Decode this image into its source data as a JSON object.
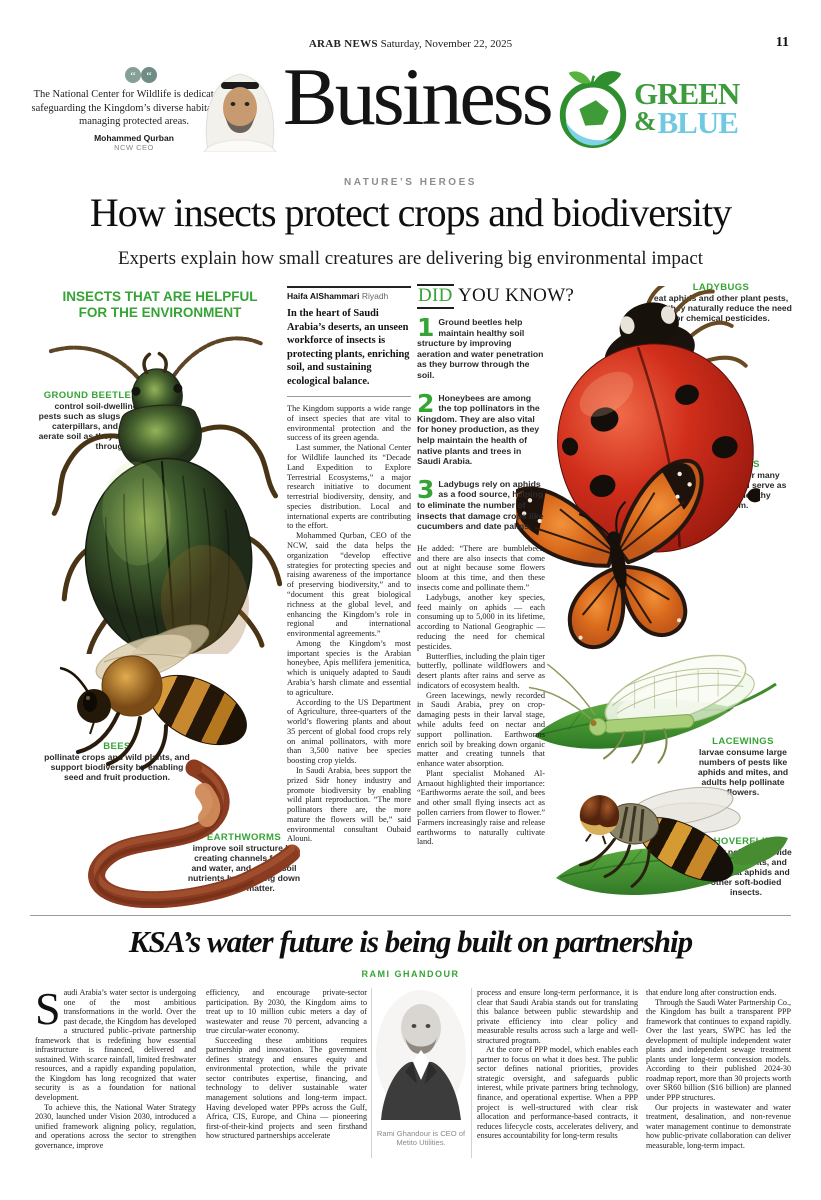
{
  "masthead": {
    "paper_name": "ARAB NEWS",
    "date": "Saturday, November 22, 2025",
    "page_number": "11",
    "section_title": "Business"
  },
  "section_logo": {
    "green": "GREEN",
    "amp": "&",
    "blue": "BLUE"
  },
  "pull_quote": {
    "text": "The National Center for Wildlife is dedicated to safeguarding the Kingdom’s diverse habitats and managing protected areas.",
    "author": "Mohammed Qurban",
    "role": "NCW CEO"
  },
  "lead_article": {
    "kicker": "NATURE’S HEROES",
    "headline": "How insects protect crops and biodiversity",
    "subhead": "Experts explain how small creatures are delivering big environmental impact",
    "byline_name": "Haifa AlShammari",
    "byline_location": "Riyadh",
    "lede": "In the heart of Saudi Arabia’s deserts, an unseen workforce of insects is protecting plants, enriching soil, and sustaining ecological balance.",
    "body_col1": [
      "The Kingdom supports a wide range of insect species that are vital to environmental protection and the success of its green agenda.",
      "Last summer, the National Center for Wildlife launched its “Decade Land Expedition to Explore Terrestrial Ecosystems,” a major research initiative to document terrestrial biodiversity, density, and species distribution. Local and international experts are contributing to the effort.",
      "Mohammed Qurban, CEO of the NCW, said the data helps the organization “develop effective strategies for protecting species and raising awareness of the importance of preserving biodiversity,” and to “document this great biological richness at the global level, and enhancing the Kingdom’s role in regional and international environmental agreements.”",
      "Among the Kingdom’s most important species is the Arabian honeybee, Apis mellifera jemenitica, which is uniquely adapted to Saudi Arabia’s harsh climate and essential to agriculture.",
      "According to the US Department of Agriculture, three-quarters of the world’s flowering plants and about 35 percent of global food crops rely on animal pollinators, with more than 3,500 native bee species boosting crop yields.",
      "In Saudi Arabia, bees support the prized Sidr honey industry and promote biodiversity by enabling wild plant reproduction. “The more pollinators there are, the more mature the flowers will be,” said environmental consultant Oubaid Alouni."
    ],
    "body_col2": [
      "He added: “There are bumblebees, and there are also insects that come out at night because some flowers bloom at this time, and then these insects come and pollinate them.”",
      "Ladybugs, another key species, feed mainly on aphids — each consuming up to 5,000 in its lifetime, according to National Geographic — reducing the need for chemical pesticides.",
      "Butterflies, including the plain tiger butterfly, pollinate wildflowers and desert plants after rains and serve as indicators of ecosystem health.",
      "Green lacewings, newly recorded in Saudi Arabia, prey on crop-damaging pests in their larval stage, while adults feed on nectar and support pollination. Earthworms enrich soil by breaking down organic matter and creating tunnels that enhance water absorption.",
      "Plant specialist Mohaned Al-Arnaout highlighted their importance: “Earthworms aerate the soil, and bees and other small flying insects act as pollen carriers from flower to flower.” Farmers increasingly raise and release earthworms to naturally cultivate land."
    ]
  },
  "infographic": {
    "title": "INSECTS THAT ARE HELPFUL FOR THE ENVIRONMENT",
    "labels": [
      {
        "name": "GROUND BEETLES",
        "text": "control soil-dwelling pests such as slugs and caterpillars, and help aerate soil as they move through it."
      },
      {
        "name": "BEES",
        "text": "pollinate crops and wild plants, and support biodiversity by enabling seed and fruit production."
      },
      {
        "name": "EARTHWORMS",
        "text": "improve soil structure by creating channels for air and water, and enrich soil nutrients by breaking down organic matter."
      },
      {
        "name": "LADYBUGS",
        "text": "eat aphids and other plant pests, and they naturally reduce the need for chemical pesticides."
      },
      {
        "name": "BUTTERFLIES",
        "text": "act as pollinators for many flowering plants, and serve as indicators of a healthy ecosystem."
      },
      {
        "name": "LACEWINGS",
        "text": "larvae consume large numbers of pests like aphids and mites, and adults help pollinate flowers."
      },
      {
        "name": "HOVERFLIES",
        "text": "adults pollinate a wide range of plants, and larvae eat aphids and other soft-bodied insects."
      }
    ]
  },
  "did_you_know": {
    "title_accent": "DID",
    "title_rest": " YOU KNOW?",
    "facts": [
      {
        "num": "1",
        "text": "Ground beetles help maintain healthy soil structure by improving aeration and water penetration as they burrow through the soil."
      },
      {
        "num": "2",
        "text": "Honeybees are among the top pollinators in the Kingdom. They are also vital for honey production, as they help maintain the health of native plants and trees in Saudi Arabia."
      },
      {
        "num": "3",
        "text": "Ladybugs rely on aphids as a food source, helping to eliminate the number of insects that damage crops like cucumbers and date palms."
      }
    ]
  },
  "water_article": {
    "headline": "KSA’s water future is being built on partnership",
    "byline": "RAMI GHANDOUR",
    "drop_cap": "S",
    "col1": [
      "audi Arabia’s water sector is undergoing one of the most ambitious transformations in the world. Over the past decade, the Kingdom has developed a structured public–private partnership framework that is redefining how essential infrastructure is financed, delivered and sustained. With scarce rainfall, limited freshwater resources, and a rapidly expanding population, the Kingdom has long recognized that water security is as a foundation for national development.",
      "To achieve this, the National Water Strategy 2030, launched under Vision 2030, introduced a unified framework aligning policy, regulation, and operations across the sector to strengthen governance, improve"
    ],
    "col2": [
      "efficiency, and encourage private-sector participation. By 2030, the Kingdom aims to treat up to 10 million cubic meters a day of wastewater and reuse 70 percent, advancing a true circular-water economy.",
      "Succeeding these ambitions requires partnership and innovation. The government defines strategy and ensures equity and environmental protection, while the private sector contributes expertise, financing, and technology to deliver sustainable water management solutions and long-term impact. Having developed water PPPs across the Gulf, Africa, CIS, Europe, and China — pioneering first-of-their-kind projects and seen firsthand how structured partnerships accelerate"
    ],
    "col4": [
      "process and ensure long-term performance, it is clear that Saudi Arabia stands out for translating this balance between public stewardship and private efficiency into clear policy and measurable results across such a large and well-structured program.",
      "At the core of PPP model, which enables each partner to focus on what it does best. The public sector defines national priorities, provides strategic oversight, and safeguards public interest, while private partners bring technology, finance, and operational expertise. When a PPP project is well-structured with clear risk allocation and performance-based contracts, it reduces lifecycle costs, accelerates delivery, and ensures accountability for long-term results"
    ],
    "col5": [
      "that endure long after construction ends.",
      "Through the Saudi Water Partnership Co., the Kingdom has built a transparent PPP framework that continues to expand rapidly. Over the last years, SWPC has led the development of multiple independent water plants and independent sewage treatment plants under long-term concession models. According to their published 2024-30 roadmap report, more than 30 projects worth over SR60 billion ($16 billion) are planned under PPP structures.",
      "Our projects in wastewater and water treatment, desalination, and non-revenue water management continue to demonstrate how public-private collaboration can deliver measurable, long-term impact."
    ],
    "photo_caption": "Rami Ghandour is CEO of Metito Utilities."
  },
  "colors": {
    "accent_green": "#35a435",
    "logo_green": "#3d9b3d",
    "logo_blue": "#6fc9e2",
    "ladybug_red": "#d12e1b"
  }
}
